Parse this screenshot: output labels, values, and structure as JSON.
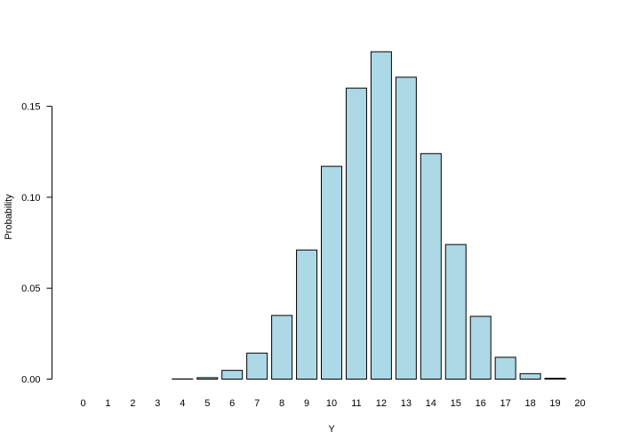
{
  "chart_data": {
    "type": "bar",
    "title": "",
    "xlabel": "Y",
    "ylabel": "Probability",
    "categories": [
      "0",
      "1",
      "2",
      "3",
      "4",
      "5",
      "6",
      "7",
      "8",
      "9",
      "10",
      "11",
      "12",
      "13",
      "14",
      "15",
      "16",
      "17",
      "18",
      "19",
      "20"
    ],
    "values": [
      0.0,
      0.0,
      0.0,
      0.0,
      0.0001,
      0.0008,
      0.0048,
      0.0143,
      0.035,
      0.071,
      0.117,
      0.16,
      0.18,
      0.166,
      0.124,
      0.074,
      0.0345,
      0.012,
      0.003,
      0.0005,
      0.0
    ],
    "yticks": [
      "0.00",
      "0.05",
      "0.10",
      "0.15"
    ],
    "ylim": [
      0,
      0.18
    ],
    "grid": false,
    "colors": {
      "bar_fill": "#add8e6",
      "bar_stroke": "#000000",
      "axis": "#000000"
    }
  }
}
